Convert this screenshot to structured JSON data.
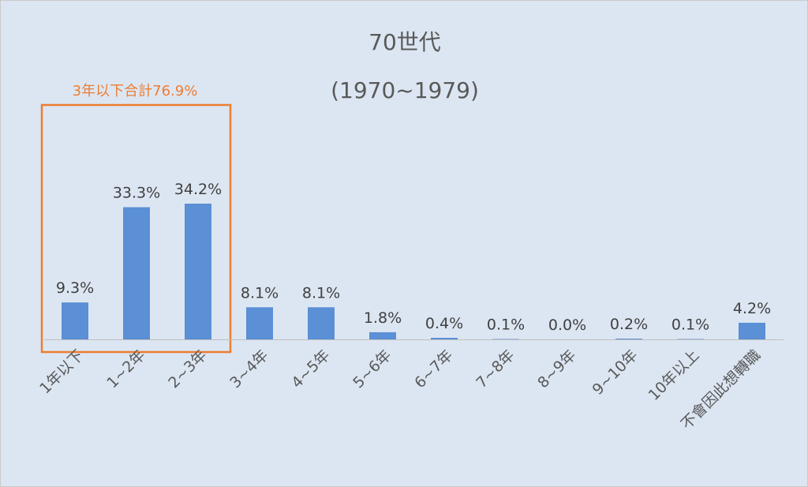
{
  "chart_data": {
    "type": "bar",
    "title": "70世代",
    "subtitle": "(1970~1979)",
    "categories": [
      "1年以下",
      "1~2年",
      "2~3年",
      "3~4年",
      "4~5年",
      "5~6年",
      "6~7年",
      "7~8年",
      "8~9年",
      "9~10年",
      "10年以上",
      "不會因此想轉職"
    ],
    "values": [
      9.3,
      33.3,
      34.2,
      8.1,
      8.1,
      1.8,
      0.4,
      0.1,
      0.0,
      0.2,
      0.1,
      4.2
    ],
    "data_labels": [
      "9.3%",
      "33.3%",
      "34.2%",
      "8.1%",
      "8.1%",
      "1.8%",
      "0.4%",
      "0.1%",
      "0.0%",
      "0.2%",
      "0.1%",
      "4.2%"
    ],
    "unit": "%",
    "xlabel": "",
    "ylabel": "",
    "ylim": [
      0,
      40
    ],
    "grid": false,
    "legend": "none",
    "bar_color": "#5b8fd6",
    "annotation": {
      "text": "3年以下合計76.9%",
      "color": "#ed7d31",
      "spans_categories": [
        "1年以下",
        "1~2年",
        "2~3年"
      ]
    }
  }
}
